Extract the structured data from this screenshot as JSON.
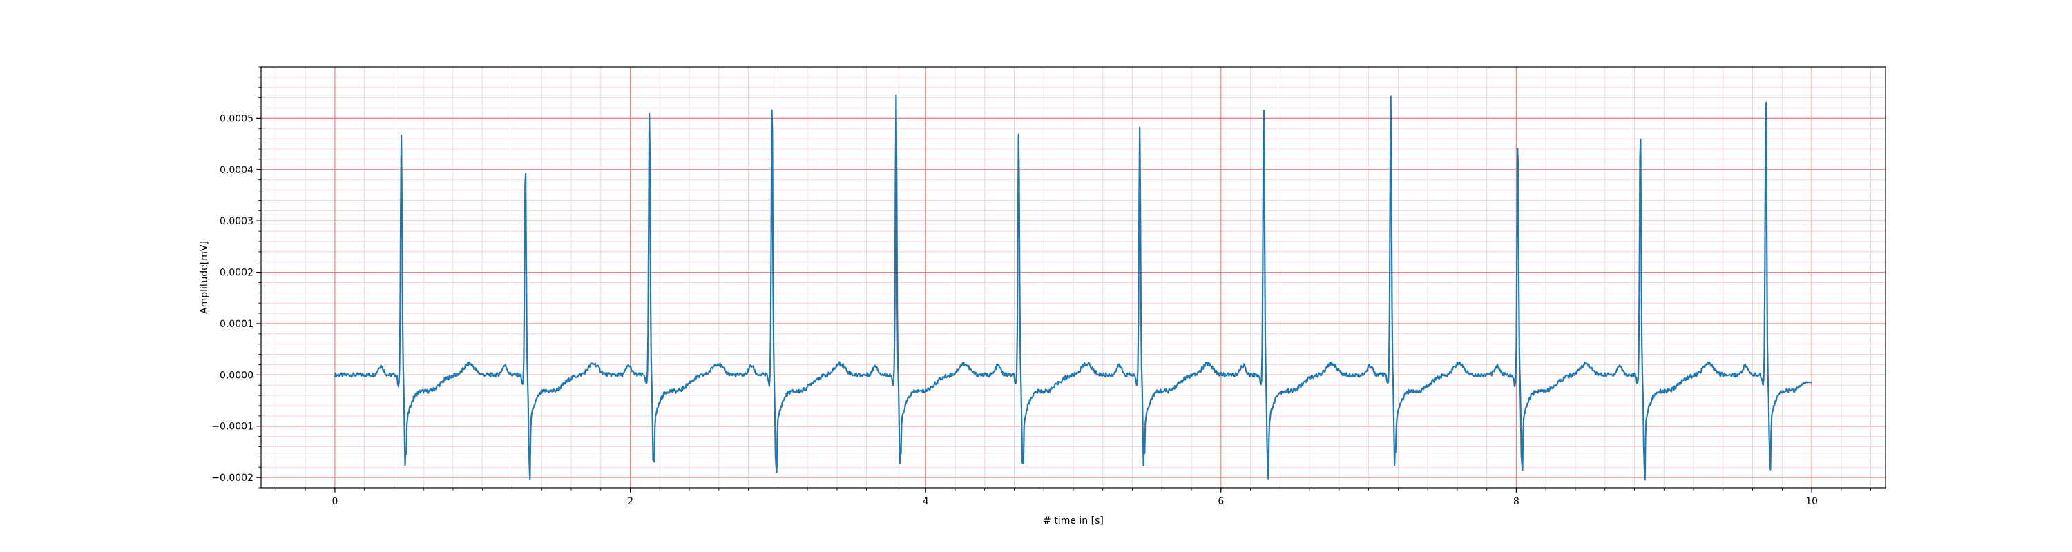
{
  "chart_data": {
    "type": "line",
    "title": "",
    "xlabel": "# time in [s]",
    "ylabel": "Amplitude[mV]",
    "xlim": [
      -0.5,
      10.5
    ],
    "ylim": [
      -0.00022,
      0.0006
    ],
    "xticks": [
      0,
      2,
      4,
      6,
      8,
      10
    ],
    "xtick_labels": [
      "0",
      "2",
      "4",
      "6",
      "8",
      "10"
    ],
    "yticks": [
      -0.0002,
      -0.0001,
      0.0,
      0.0001,
      0.0002,
      0.0003,
      0.0004,
      0.0005
    ],
    "ytick_labels": [
      "−0.0002",
      "−0.0001",
      "0.0000",
      "0.0001",
      "0.0002",
      "0.0003",
      "0.0004",
      "0.0005"
    ],
    "grid": {
      "major": true,
      "minor": true,
      "major_x_step": 2,
      "minor_x_step": 0.2,
      "major_y_step": 0.0001,
      "minor_y_step": 2e-05
    },
    "colors": {
      "line": "#1f77b4",
      "major_grid": "#f08080",
      "minor_grid": "#f8c8d8",
      "axes": "#000000"
    },
    "signal": {
      "x_start": 0,
      "x_end": 10,
      "baseline": 0.0,
      "beats": [
        {
          "t": 0.45,
          "r": 0.000465,
          "s": -0.00018
        },
        {
          "t": 1.29,
          "r": 0.000415,
          "s": -0.000172
        },
        {
          "t": 2.13,
          "r": 0.000515,
          "s": -0.000174
        },
        {
          "t": 2.96,
          "r": 0.000543,
          "s": -0.000182
        },
        {
          "t": 3.8,
          "r": 0.000543,
          "s": -0.00018
        },
        {
          "t": 4.63,
          "r": 0.000472,
          "s": -0.00018
        },
        {
          "t": 5.45,
          "r": 0.000485,
          "s": -0.000176
        },
        {
          "t": 6.29,
          "r": 0.000543,
          "s": -0.000176
        },
        {
          "t": 7.15,
          "r": 0.000542,
          "s": -0.000178
        },
        {
          "t": 8.01,
          "r": 0.00047,
          "s": -0.000176
        },
        {
          "t": 8.84,
          "r": 0.000485,
          "s": -0.000176
        },
        {
          "t": 9.69,
          "r": 0.00056,
          "s": -0.00016
        }
      ],
      "end_value": -1.5e-05
    }
  }
}
